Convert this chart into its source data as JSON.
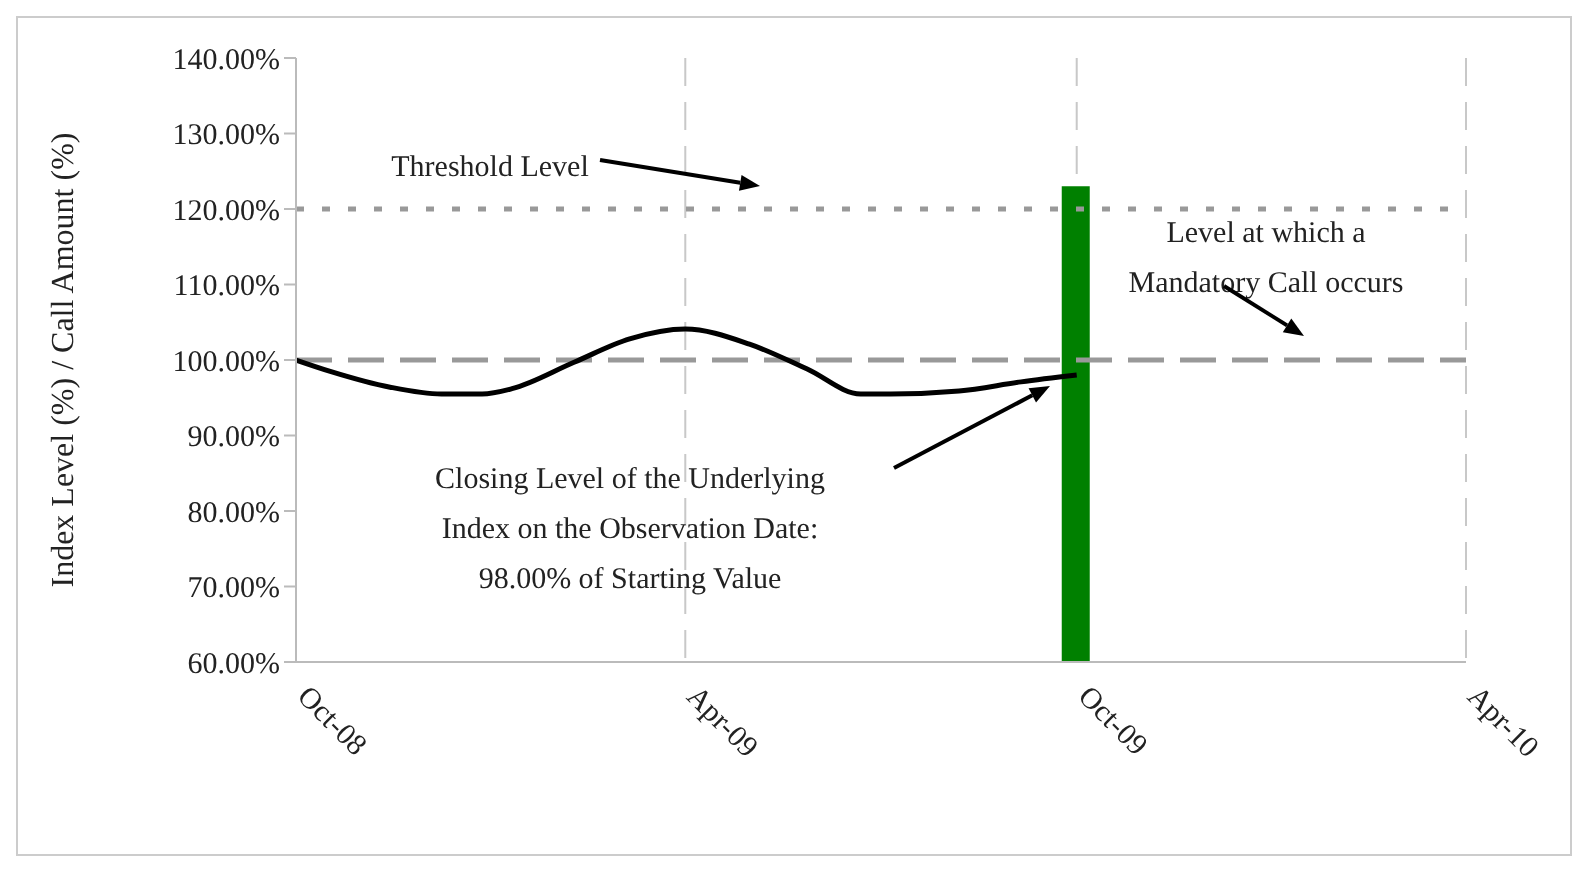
{
  "chart_data": {
    "type": "line",
    "ylabel": "Index Level (%) / Call Amount (%)",
    "xlim": [
      "2008-10-01",
      "2010-04-01"
    ],
    "xticks": [
      {
        "value": "2008-10-01",
        "label": "Oct-08"
      },
      {
        "value": "2009-04-01",
        "label": "Apr-09"
      },
      {
        "value": "2009-10-01",
        "label": "Oct-09"
      },
      {
        "value": "2010-04-01",
        "label": "Apr-10"
      }
    ],
    "ylim": [
      60,
      140
    ],
    "yticks": [
      {
        "value": 60,
        "label": "60.00%"
      },
      {
        "value": 70,
        "label": "70.00%"
      },
      {
        "value": 80,
        "label": "80.00%"
      },
      {
        "value": 90,
        "label": "90.00%"
      },
      {
        "value": 100,
        "label": "100.00%"
      },
      {
        "value": 110,
        "label": "110.00%"
      },
      {
        "value": 120,
        "label": "120.00%"
      },
      {
        "value": 130,
        "label": "130.00%"
      },
      {
        "value": 140,
        "label": "140.00%"
      }
    ],
    "grid": "x",
    "legend": false,
    "marker": "none",
    "series": [
      {
        "color": "#000000",
        "x": [
          "2008-10-01",
          "2008-10-17",
          "2008-11-14",
          "2008-12-08",
          "2008-12-27",
          "2009-01-10",
          "2009-02-08",
          "2009-03-06",
          "2009-04-01",
          "2009-05-01",
          "2009-05-28",
          "2009-06-22",
          "2009-07-06",
          "2009-08-07",
          "2009-09-05",
          "2009-10-01"
        ],
        "values": [
          100,
          98.5,
          96.4,
          95.5,
          95.5,
          96.2,
          99.7,
          102.8,
          104.1,
          102.1,
          98.8,
          95.5,
          95.5,
          95.9,
          97.1,
          98
        ]
      },
      {
        "type": "bar",
        "color": "#008000",
        "x": [
          "2009-10-01"
        ],
        "values": [
          123
        ]
      }
    ],
    "ref_lines": [
      {
        "axis": "y",
        "value": 120,
        "color": "#999999",
        "line_style": "dotted"
      },
      {
        "axis": "y",
        "value": 100,
        "color": "#999999",
        "line_style": "dashed"
      }
    ],
    "annotations": [
      "Threshold Level",
      "Level at which a Mandatory Call occurs",
      "Closing Level of the Underlying Index on the Observation Date: 98.00% of Starting Value"
    ]
  }
}
